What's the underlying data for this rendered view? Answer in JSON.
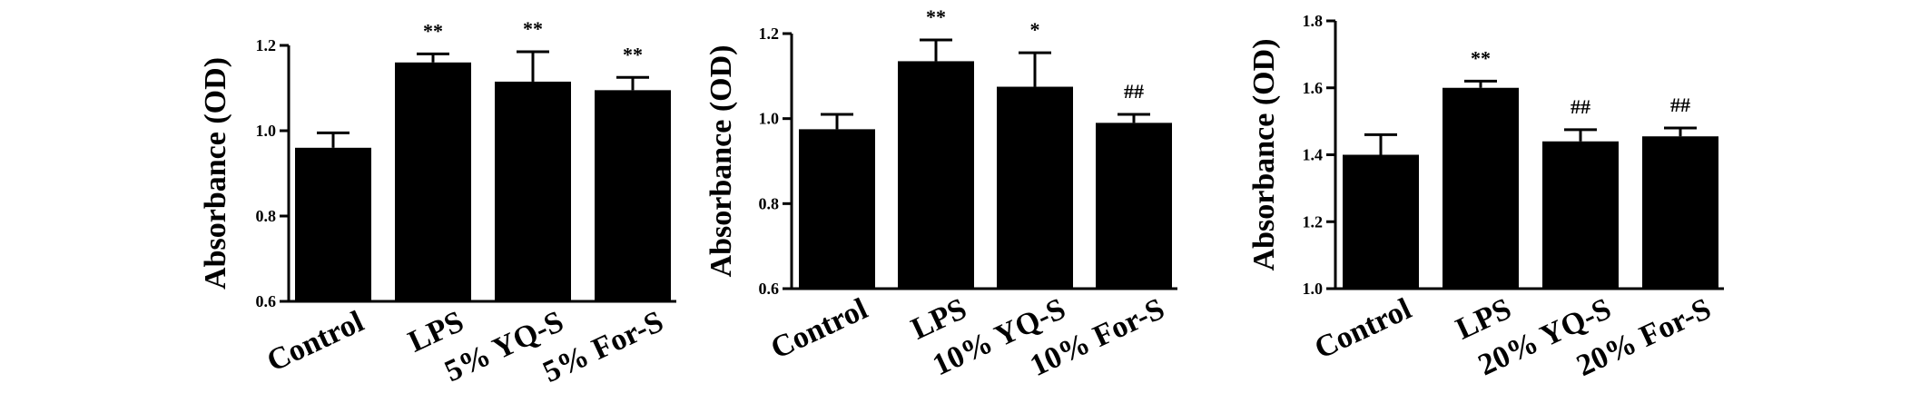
{
  "chart_data": [
    {
      "type": "bar",
      "ylabel": "Absorbance (OD)",
      "ylim": [
        0.6,
        1.2
      ],
      "yticks": [
        "0.6",
        "0.8",
        "1.0",
        "1.2"
      ],
      "categories": [
        "Control",
        "LPS",
        "5% YQ-S",
        "5% For-S"
      ],
      "values": [
        0.96,
        1.16,
        1.115,
        1.095
      ],
      "errors": [
        0.035,
        0.02,
        0.07,
        0.03
      ],
      "significance": [
        "",
        "**",
        "**",
        "**"
      ]
    },
    {
      "type": "bar",
      "ylabel": "Absorbance (OD)",
      "ylim": [
        0.6,
        1.2
      ],
      "yticks": [
        "0.6",
        "0.8",
        "1.0",
        "1.2"
      ],
      "categories": [
        "Control",
        "LPS",
        "10% YQ-S",
        "10% For-S"
      ],
      "values": [
        0.975,
        1.135,
        1.075,
        0.99
      ],
      "errors": [
        0.035,
        0.05,
        0.08,
        0.02
      ],
      "significance": [
        "",
        "**",
        "*",
        "##"
      ]
    },
    {
      "type": "bar",
      "ylabel": "Absorbance (OD)",
      "ylim": [
        1.0,
        1.8
      ],
      "yticks": [
        "1.0",
        "1.2",
        "1.4",
        "1.6",
        "1.8"
      ],
      "categories": [
        "Control",
        "LPS",
        "20% YQ-S",
        "20% For-S"
      ],
      "values": [
        1.4,
        1.6,
        1.44,
        1.455
      ],
      "errors": [
        0.06,
        0.02,
        0.035,
        0.025
      ],
      "significance": [
        "",
        "**",
        "##",
        "##"
      ]
    }
  ],
  "colors": {
    "bar": "#000000",
    "axis": "#000000",
    "background": "#ffffff"
  }
}
